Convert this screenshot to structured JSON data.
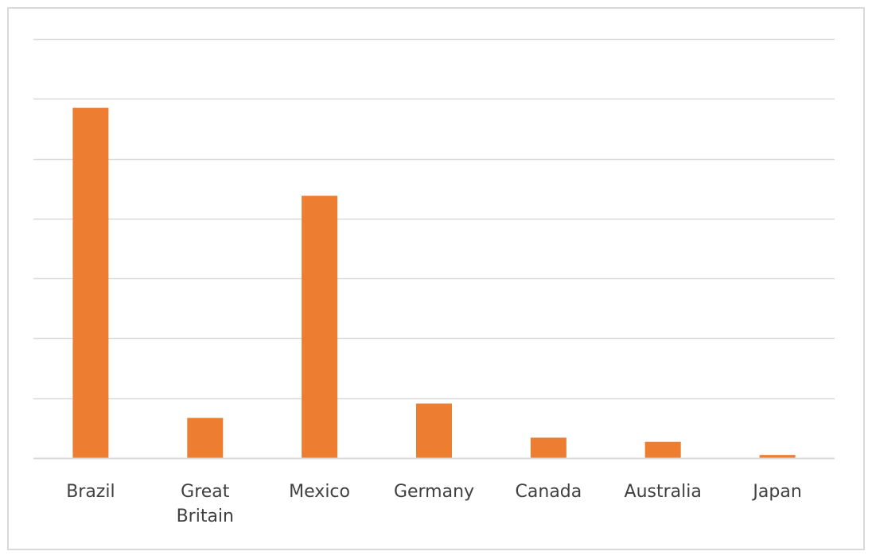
{
  "chart_data": {
    "type": "bar",
    "categories": [
      "Brazil",
      "Great Britain",
      "Mexico",
      "Germany",
      "Canada",
      "Australia",
      "Japan"
    ],
    "category_lines": [
      [
        "Brazil"
      ],
      [
        "Great",
        "Britain"
      ],
      [
        "Mexico"
      ],
      [
        "Germany"
      ],
      [
        "Canada"
      ],
      [
        "Australia"
      ],
      [
        "Japan"
      ]
    ],
    "values": [
      5.85,
      0.67,
      4.38,
      0.91,
      0.34,
      0.27,
      0.05
    ],
    "ylim": [
      0,
      7
    ],
    "yticks": [
      0,
      1,
      2,
      3,
      4,
      5,
      6,
      7
    ],
    "title": "",
    "xlabel": "",
    "ylabel": "",
    "grid": true,
    "show_y_tick_labels": false,
    "legend": "none",
    "bar_color": "#ed7d31",
    "grid_color": "#d9d9d9"
  }
}
